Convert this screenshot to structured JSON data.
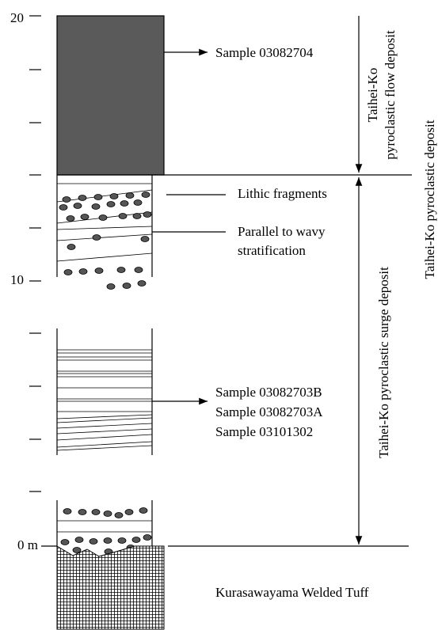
{
  "scale": {
    "top": "20",
    "middle": "10",
    "base": "0 m"
  },
  "units": {
    "flow_deposit": {
      "line1": "Taihei-Ko",
      "line2": "pyroclastic flow deposit"
    },
    "surge_deposit": "Taihei-Ko pyroclastic surge deposit",
    "whole_deposit": "Taihei-Ko pyroclastic deposit",
    "basement": "Kurasawayama Welded Tuff"
  },
  "labels": {
    "upper_sample": "Sample 03082704",
    "lithic": "Lithic fragments",
    "stratification": {
      "line1": "Parallel to wavy",
      "line2": "stratification"
    },
    "lower_samples": [
      "Sample 03082703B",
      "Sample 03082703A",
      "Sample 03101302"
    ]
  }
}
